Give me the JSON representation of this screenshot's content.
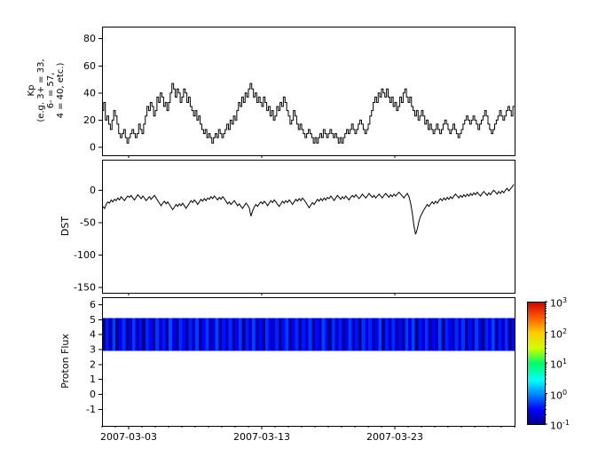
{
  "figure": {
    "background": "#ffffff",
    "line_color": "#000000"
  },
  "xaxis": {
    "tick_labels": [
      "2007-03-03",
      "2007-03-13",
      "2007-03-23"
    ],
    "tick_days": [
      2,
      12,
      22
    ],
    "minor_tick_every_days": 1,
    "xlim_days": [
      0,
      31
    ]
  },
  "chart_data": [
    {
      "type": "line",
      "subtype": "step",
      "name": "kp-index",
      "ylabel_lines": [
        "Kp",
        "(e.g. 3+ = 33,",
        "6- = 57,",
        "4 = 40, etc.)"
      ],
      "yticks": [
        0,
        20,
        40,
        60,
        80
      ],
      "ylim": [
        -6,
        89
      ],
      "x_step_days": 0.125,
      "line_color": "#000000",
      "values": [
        27,
        33,
        20,
        23,
        17,
        13,
        20,
        27,
        23,
        17,
        10,
        7,
        10,
        13,
        7,
        3,
        7,
        10,
        13,
        10,
        7,
        10,
        17,
        13,
        10,
        17,
        23,
        30,
        27,
        33,
        30,
        23,
        27,
        37,
        33,
        40,
        37,
        30,
        33,
        27,
        33,
        40,
        47,
        43,
        37,
        43,
        40,
        33,
        37,
        43,
        40,
        33,
        37,
        30,
        27,
        23,
        27,
        20,
        23,
        17,
        13,
        10,
        13,
        7,
        10,
        7,
        3,
        7,
        10,
        7,
        13,
        10,
        7,
        10,
        13,
        17,
        13,
        20,
        17,
        23,
        20,
        27,
        33,
        30,
        37,
        33,
        40,
        37,
        43,
        47,
        43,
        37,
        40,
        33,
        37,
        33,
        30,
        37,
        33,
        27,
        30,
        23,
        27,
        20,
        23,
        30,
        27,
        33,
        30,
        37,
        33,
        27,
        23,
        17,
        20,
        27,
        23,
        17,
        13,
        17,
        13,
        10,
        7,
        10,
        13,
        10,
        7,
        3,
        7,
        3,
        7,
        10,
        7,
        13,
        10,
        7,
        10,
        13,
        10,
        7,
        10,
        7,
        3,
        7,
        3,
        7,
        10,
        13,
        10,
        13,
        17,
        13,
        10,
        13,
        17,
        20,
        17,
        13,
        10,
        13,
        17,
        23,
        27,
        33,
        37,
        33,
        40,
        37,
        43,
        40,
        37,
        43,
        37,
        33,
        37,
        30,
        33,
        27,
        30,
        37,
        33,
        40,
        43,
        37,
        33,
        37,
        30,
        27,
        23,
        27,
        20,
        23,
        27,
        23,
        17,
        20,
        13,
        17,
        13,
        10,
        13,
        17,
        13,
        10,
        13,
        17,
        20,
        17,
        13,
        10,
        13,
        17,
        13,
        10,
        7,
        10,
        13,
        17,
        20,
        23,
        20,
        17,
        20,
        23,
        20,
        17,
        13,
        17,
        20,
        23,
        27,
        23,
        17,
        13,
        10,
        13,
        17,
        20,
        23,
        27,
        23,
        20,
        23,
        27,
        30,
        27,
        23,
        30
      ]
    },
    {
      "type": "line",
      "name": "dst-index",
      "ylabel": "DST",
      "yticks": [
        0,
        -50,
        -100,
        -150
      ],
      "ylim": [
        -158,
        47
      ],
      "x_step_days": 0.125,
      "line_color": "#000000",
      "values": [
        -25,
        -28,
        -22,
        -18,
        -20,
        -15,
        -18,
        -14,
        -16,
        -12,
        -15,
        -10,
        -13,
        -16,
        -12,
        -9,
        -11,
        -8,
        -12,
        -15,
        -11,
        -7,
        -10,
        -13,
        -9,
        -12,
        -16,
        -13,
        -10,
        -14,
        -11,
        -8,
        -12,
        -16,
        -20,
        -24,
        -20,
        -17,
        -21,
        -18,
        -22,
        -26,
        -30,
        -26,
        -22,
        -25,
        -21,
        -24,
        -20,
        -24,
        -28,
        -24,
        -20,
        -16,
        -19,
        -15,
        -18,
        -22,
        -18,
        -14,
        -17,
        -13,
        -16,
        -12,
        -14,
        -10,
        -13,
        -9,
        -12,
        -15,
        -11,
        -14,
        -10,
        -13,
        -17,
        -21,
        -18,
        -22,
        -19,
        -16,
        -20,
        -24,
        -21,
        -25,
        -28,
        -24,
        -20,
        -23,
        -27,
        -40,
        -32,
        -26,
        -22,
        -25,
        -21,
        -18,
        -21,
        -17,
        -20,
        -24,
        -20,
        -16,
        -19,
        -15,
        -18,
        -22,
        -25,
        -21,
        -17,
        -20,
        -16,
        -19,
        -15,
        -18,
        -22,
        -18,
        -14,
        -17,
        -13,
        -16,
        -12,
        -15,
        -19,
        -23,
        -27,
        -23,
        -19,
        -22,
        -18,
        -14,
        -17,
        -13,
        -16,
        -12,
        -15,
        -11,
        -13,
        -9,
        -12,
        -16,
        -12,
        -8,
        -11,
        -14,
        -10,
        -13,
        -9,
        -12,
        -15,
        -11,
        -8,
        -11,
        -7,
        -10,
        -13,
        -10,
        -6,
        -9,
        -12,
        -9,
        -5,
        -8,
        -11,
        -8,
        -12,
        -9,
        -6,
        -9,
        -12,
        -8,
        -5,
        -8,
        -11,
        -7,
        -10,
        -6,
        -9,
        -6,
        -3,
        -6,
        -9,
        -12,
        -8,
        -5,
        -10,
        -20,
        -35,
        -55,
        -68,
        -60,
        -48,
        -40,
        -35,
        -30,
        -26,
        -22,
        -25,
        -21,
        -18,
        -21,
        -17,
        -20,
        -16,
        -13,
        -16,
        -12,
        -15,
        -11,
        -14,
        -10,
        -13,
        -9,
        -6,
        -9,
        -12,
        -8,
        -11,
        -7,
        -10,
        -6,
        -9,
        -5,
        -8,
        -4,
        -7,
        -3,
        -6,
        -9,
        -5,
        -2,
        -5,
        -8,
        -4,
        -7,
        -3,
        0,
        -3,
        -6,
        -2,
        -5,
        -1,
        -4,
        0,
        3,
        -1,
        2,
        5,
        9
      ]
    },
    {
      "type": "heatmap",
      "name": "proton-flux",
      "ylabel": "Proton Flux",
      "yticks": [
        6,
        5,
        4,
        3,
        2,
        1,
        0,
        -1
      ],
      "ylim": [
        -2.1,
        6.5
      ],
      "band_y": [
        2.9,
        5.1
      ],
      "x_step_days": 0.25,
      "flux_samples": [
        0.12,
        0.38,
        0.15,
        0.52,
        0.11,
        0.29,
        0.45,
        0.13,
        0.22,
        0.5,
        0.17,
        0.33,
        0.1,
        0.41,
        0.26,
        0.14,
        0.48,
        0.19,
        0.36,
        0.12,
        0.55,
        0.23,
        0.15,
        0.44,
        0.28,
        0.11,
        0.39,
        0.18,
        0.51,
        0.13,
        0.31,
        0.47,
        0.16,
        0.24,
        0.53,
        0.12,
        0.35,
        0.2,
        0.42,
        0.14,
        0.27,
        0.49,
        0.11,
        0.37,
        0.22,
        0.54,
        0.16,
        0.3,
        0.13,
        0.46,
        0.25,
        0.18,
        0.4,
        0.12,
        0.33,
        0.51,
        0.15,
        0.28,
        0.43,
        0.11,
        0.36,
        0.21,
        0.48,
        0.14,
        0.32,
        0.17,
        0.52,
        0.24,
        0.12,
        0.45,
        0.19,
        0.38,
        0.13,
        0.29,
        0.5,
        0.16,
        0.34,
        0.11,
        0.47,
        0.23,
        0.41,
        0.15,
        0.26,
        0.53,
        0.12,
        0.37,
        0.2,
        0.44,
        0.17,
        0.31,
        0.13,
        0.49,
        0.25,
        0.54,
        0.11,
        0.35,
        0.22,
        0.46,
        0.14,
        0.3,
        0.18,
        0.52,
        0.12,
        0.39,
        0.27,
        0.15,
        0.43,
        0.21,
        0.48,
        0.13,
        0.33,
        0.16,
        0.5,
        0.24,
        0.11,
        0.4,
        0.28,
        0.53,
        0.14,
        0.36,
        0.19,
        0.45,
        0.12,
        0.31
      ],
      "colorbar": {
        "scale": "log",
        "base": "10",
        "exponents": [
          "3",
          "2",
          "1",
          "0",
          "-1"
        ],
        "value_range_exponents": [
          -1,
          3
        ],
        "cmap": "jet",
        "stops": [
          [
            0.0,
            "#000080"
          ],
          [
            0.12,
            "#0000ff"
          ],
          [
            0.36,
            "#00ffff"
          ],
          [
            0.5,
            "#00ff66"
          ],
          [
            0.62,
            "#ccff00"
          ],
          [
            0.75,
            "#ffcc00"
          ],
          [
            0.88,
            "#ff5500"
          ],
          [
            1.0,
            "#cc0000"
          ]
        ]
      }
    }
  ]
}
